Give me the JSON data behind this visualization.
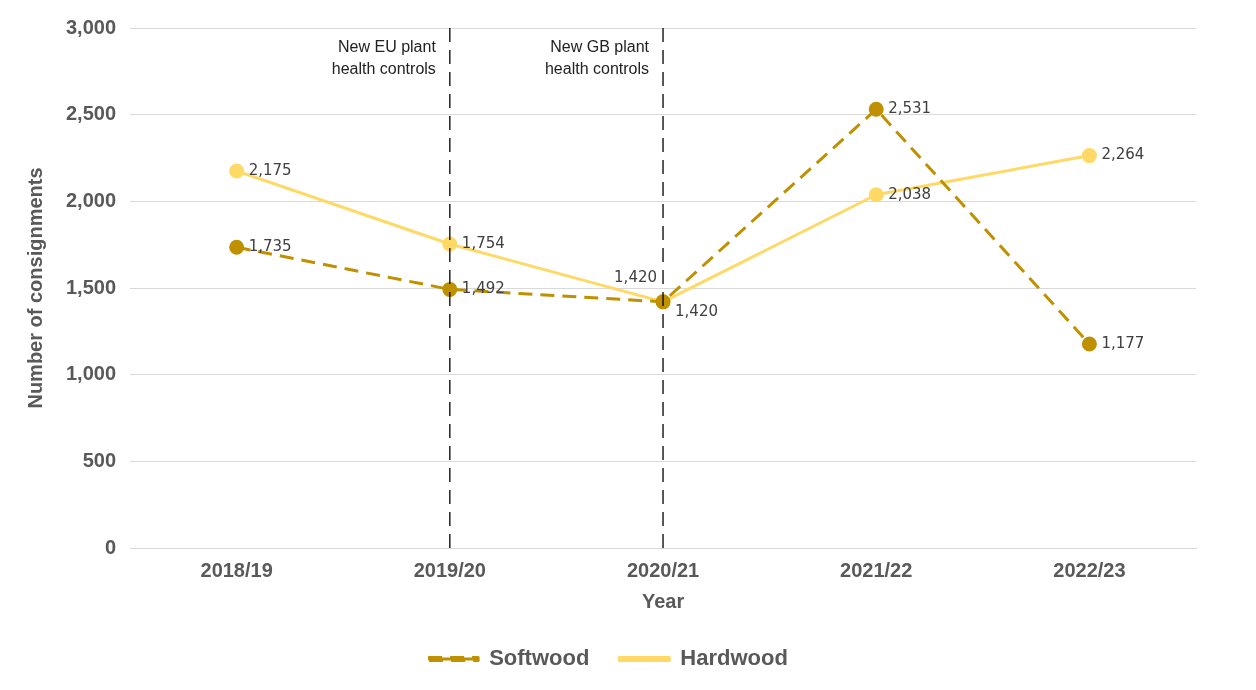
{
  "chart_data": {
    "type": "line",
    "xlabel": "Year",
    "ylabel": "Number of consignments",
    "categories": [
      "2018/19",
      "2019/20",
      "2020/21",
      "2021/22",
      "2022/23"
    ],
    "series": [
      {
        "name": "Softwood",
        "color": "#bf9000",
        "line_style": "dashed",
        "values": [
          1735,
          1492,
          1420,
          2531,
          1177
        ],
        "value_labels": [
          "1,735",
          "1,492",
          "1,420",
          "2,531",
          "1,177"
        ]
      },
      {
        "name": "Hardwood",
        "color": "#ffd966",
        "line_style": "solid",
        "values": [
          2175,
          1754,
          1420,
          2038,
          2264
        ],
        "value_labels": [
          "2,175",
          "1,754",
          "1,420",
          "2,038",
          "2,264"
        ]
      }
    ],
    "ylim": [
      0,
      3000
    ],
    "yticks": [
      {
        "value": 0,
        "label": "0"
      },
      {
        "value": 500,
        "label": "500"
      },
      {
        "value": 1000,
        "label": "1,000"
      },
      {
        "value": 1500,
        "label": "1,500"
      },
      {
        "value": 2000,
        "label": "2,000"
      },
      {
        "value": 2500,
        "label": "2,500"
      },
      {
        "value": 3000,
        "label": "3,000"
      }
    ],
    "ref_lines": [
      {
        "axis": "x",
        "value": "2019/20",
        "label": "New EU plant\nhealth controls",
        "color": "#000000",
        "line_style": "dashed"
      },
      {
        "axis": "x",
        "value": "2020/21",
        "label": "New GB plant\nhealth controls",
        "color": "#000000",
        "line_style": "dashed"
      }
    ],
    "grid": "y",
    "legend": "bottom",
    "marker": "circle"
  }
}
